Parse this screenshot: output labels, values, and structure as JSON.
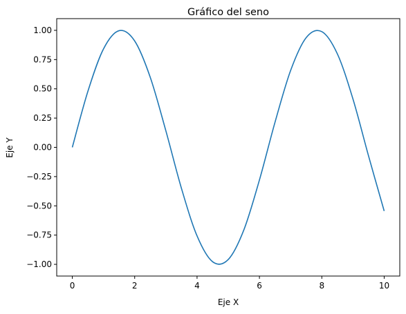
{
  "chart_data": {
    "type": "line",
    "title": "Gráfico del seno",
    "xlabel": "Eje X",
    "ylabel": "Eje Y",
    "xlim": [
      -0.5,
      10.5
    ],
    "ylim": [
      -1.1,
      1.1
    ],
    "xticks": [
      0,
      2,
      4,
      6,
      8,
      10
    ],
    "xtick_labels": [
      "0",
      "2",
      "4",
      "6",
      "8",
      "10"
    ],
    "yticks": [
      -1.0,
      -0.75,
      -0.5,
      -0.25,
      0.0,
      0.25,
      0.5,
      0.75,
      1.0
    ],
    "ytick_labels": [
      "−1.00",
      "−0.75",
      "−0.50",
      "−0.25",
      "0.00",
      "0.25",
      "0.50",
      "0.75",
      "1.00"
    ],
    "grid": false,
    "legend": "none",
    "series": [
      {
        "color": "#1f77b4",
        "x": [
          0,
          0.5,
          1,
          1.5,
          2,
          2.5,
          3,
          3.5,
          4,
          4.5,
          5,
          5.5,
          6,
          6.5,
          7,
          7.5,
          8,
          8.5,
          9,
          9.5,
          10
        ],
        "y": [
          0.0,
          0.479,
          0.841,
          0.997,
          0.909,
          0.598,
          0.141,
          -0.351,
          -0.757,
          -0.978,
          -0.959,
          -0.706,
          -0.279,
          0.215,
          0.657,
          0.938,
          0.989,
          0.798,
          0.412,
          -0.075,
          -0.544
        ]
      }
    ]
  }
}
